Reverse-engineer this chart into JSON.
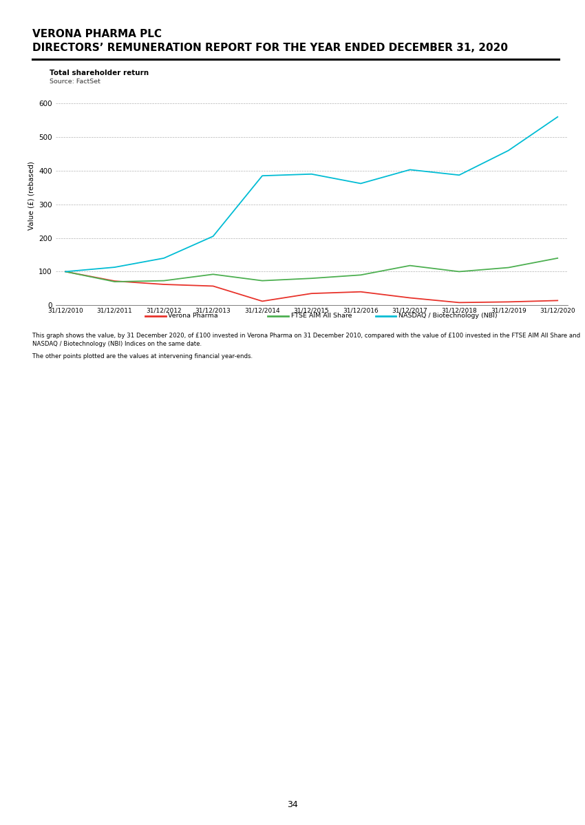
{
  "title_line1": "VERONA PHARMA PLC",
  "title_line2": "DIRECTORS’ REMUNERATION REPORT FOR THE YEAR ENDED DECEMBER 31, 2020",
  "chart_title": "Total shareholder return",
  "chart_source": "Source: FactSet",
  "ylabel": "Value (£) (rebased)",
  "x_labels": [
    "31/12/2010",
    "31/12/2011",
    "31/12/2012",
    "31/12/2013",
    "31/12/2014",
    "31/12/2015",
    "31/12/2016",
    "31/12/2017",
    "31/12/2018",
    "31/12/2019",
    "31/12/2020"
  ],
  "verona_pharma": [
    100,
    72,
    62,
    57,
    12,
    35,
    40,
    22,
    8,
    10,
    14
  ],
  "ftse_aim": [
    100,
    70,
    73,
    92,
    73,
    80,
    90,
    118,
    100,
    112,
    140
  ],
  "nasdaq_bio": [
    100,
    113,
    140,
    205,
    385,
    390,
    362,
    403,
    387,
    460,
    560
  ],
  "legend_verona": "Verona Pharma",
  "legend_ftse": "FTSE AIM All Share",
  "legend_nasdaq": "NASDAQ / Biotechnology (NBI)",
  "color_verona": "#e8322a",
  "color_ftse": "#4caf50",
  "color_nasdaq": "#00bcd4",
  "ylim": [
    0,
    650
  ],
  "yticks": [
    0,
    100,
    200,
    300,
    400,
    500,
    600
  ],
  "footnote1": "This graph shows the value, by 31 December 2020, of £100 invested in Verona Pharma on 31 December 2010, compared with the value of £100 invested in the FTSE AIM All Share and NASDAQ / Biotechnology (NBI) Indices on the same date.",
  "footnote2": "The other points plotted are the values at intervening financial year-ends.",
  "page_number": "34"
}
